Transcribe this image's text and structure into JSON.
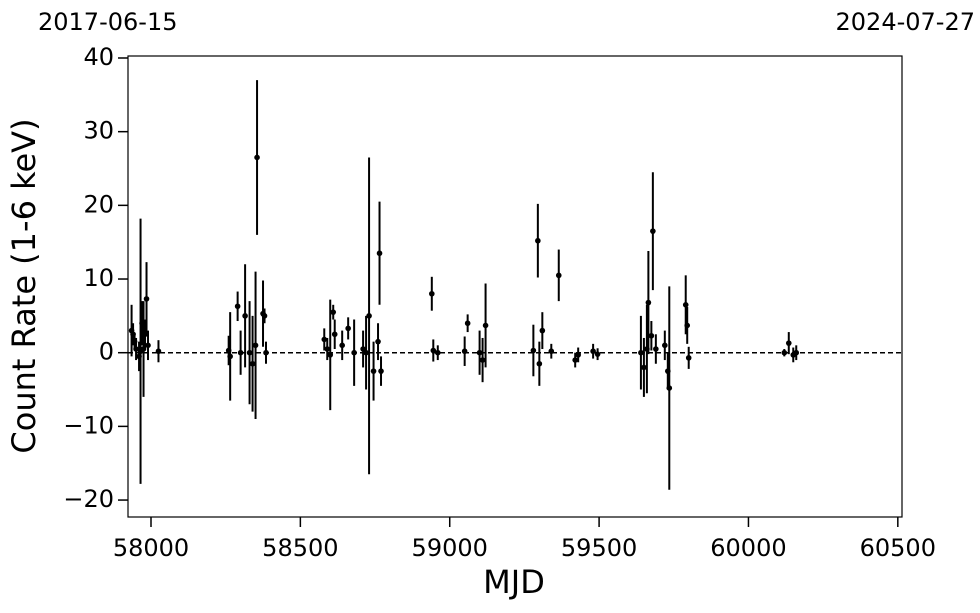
{
  "chart_data": {
    "type": "scatter",
    "annotations": [
      "2017-06-15",
      "2024-07-27"
    ],
    "xlabel": "MJD",
    "ylabel": "Count Rate (1-6 keV)",
    "xlim": [
      57923,
      60514
    ],
    "ylim": [
      -22.3,
      40.27
    ],
    "xticks": [
      58000,
      58500,
      59000,
      59500,
      60000,
      60500
    ],
    "yticks": [
      {
        "value": -20,
        "label": "−20"
      },
      {
        "value": -10,
        "label": "−10"
      },
      0,
      10,
      20,
      30,
      40
    ],
    "hline": 0,
    "color": "#000000",
    "series": [
      {
        "name": "",
        "color": "#000000",
        "x": [
          57935,
          57940,
          57945,
          57950,
          57960,
          57965,
          57970,
          57975,
          57980,
          57985,
          57990,
          58025,
          58260,
          58265,
          58290,
          58300,
          58315,
          58330,
          58340,
          58350,
          58355,
          58375,
          58380,
          58385,
          58580,
          58590,
          58600,
          58610,
          58615,
          58640,
          58660,
          58680,
          58710,
          58720,
          58730,
          58745,
          58760,
          58765,
          58770,
          58940,
          58945,
          58960,
          59050,
          59060,
          59100,
          59110,
          59120,
          59280,
          59295,
          59300,
          59310,
          59340,
          59365,
          59420,
          59430,
          59480,
          59495,
          59640,
          59650,
          59660,
          59665,
          59675,
          59680,
          59690,
          59720,
          59730,
          59735,
          59790,
          59795,
          59800,
          60120,
          60135,
          60150,
          60160
        ],
        "values": [
          3.0,
          2.5,
          1.5,
          0.5,
          -0.5,
          0.2,
          4.0,
          0.5,
          2.5,
          7.3,
          1.0,
          0.2,
          0.3,
          -0.5,
          6.3,
          0.0,
          5.0,
          0.0,
          -1.5,
          1.0,
          26.5,
          5.3,
          5.0,
          0.0,
          1.8,
          0.5,
          -0.3,
          5.5,
          2.5,
          1.0,
          3.3,
          0.0,
          0.5,
          0.0,
          5.0,
          -2.5,
          1.5,
          13.5,
          -2.5,
          8.0,
          0.3,
          0.0,
          0.2,
          4.0,
          0.0,
          -1.0,
          3.7,
          0.3,
          15.2,
          -1.5,
          3.0,
          0.2,
          10.5,
          -1.0,
          -0.3,
          0.2,
          -0.2,
          0.0,
          -2.0,
          0.5,
          6.8,
          2.3,
          16.5,
          0.5,
          1.0,
          -2.5,
          -4.8,
          6.5,
          3.7,
          -0.7,
          0.0,
          1.3,
          -0.3,
          0.0
        ],
        "errors": [
          3.5,
          1.5,
          1.2,
          1.5,
          2,
          18,
          3,
          6.5,
          2,
          5,
          2,
          1.5,
          2,
          6,
          2,
          3,
          7,
          7,
          6.5,
          10,
          10.5,
          4.5,
          1,
          1.5,
          1.5,
          1.5,
          7.5,
          1,
          2,
          2,
          1.5,
          4.5,
          2.5,
          5,
          21.5,
          4,
          2.5,
          7,
          2,
          2.3,
          1.5,
          1,
          2,
          1.2,
          3,
          3,
          5.7,
          3.5,
          5,
          3,
          2.5,
          1,
          3.5,
          1,
          1,
          1,
          0.8,
          5,
          4,
          6,
          7,
          2,
          8,
          2,
          2,
          2.5,
          13.8,
          4,
          2.5,
          1.5,
          0.5,
          1.5,
          1,
          1
        ]
      }
    ]
  }
}
